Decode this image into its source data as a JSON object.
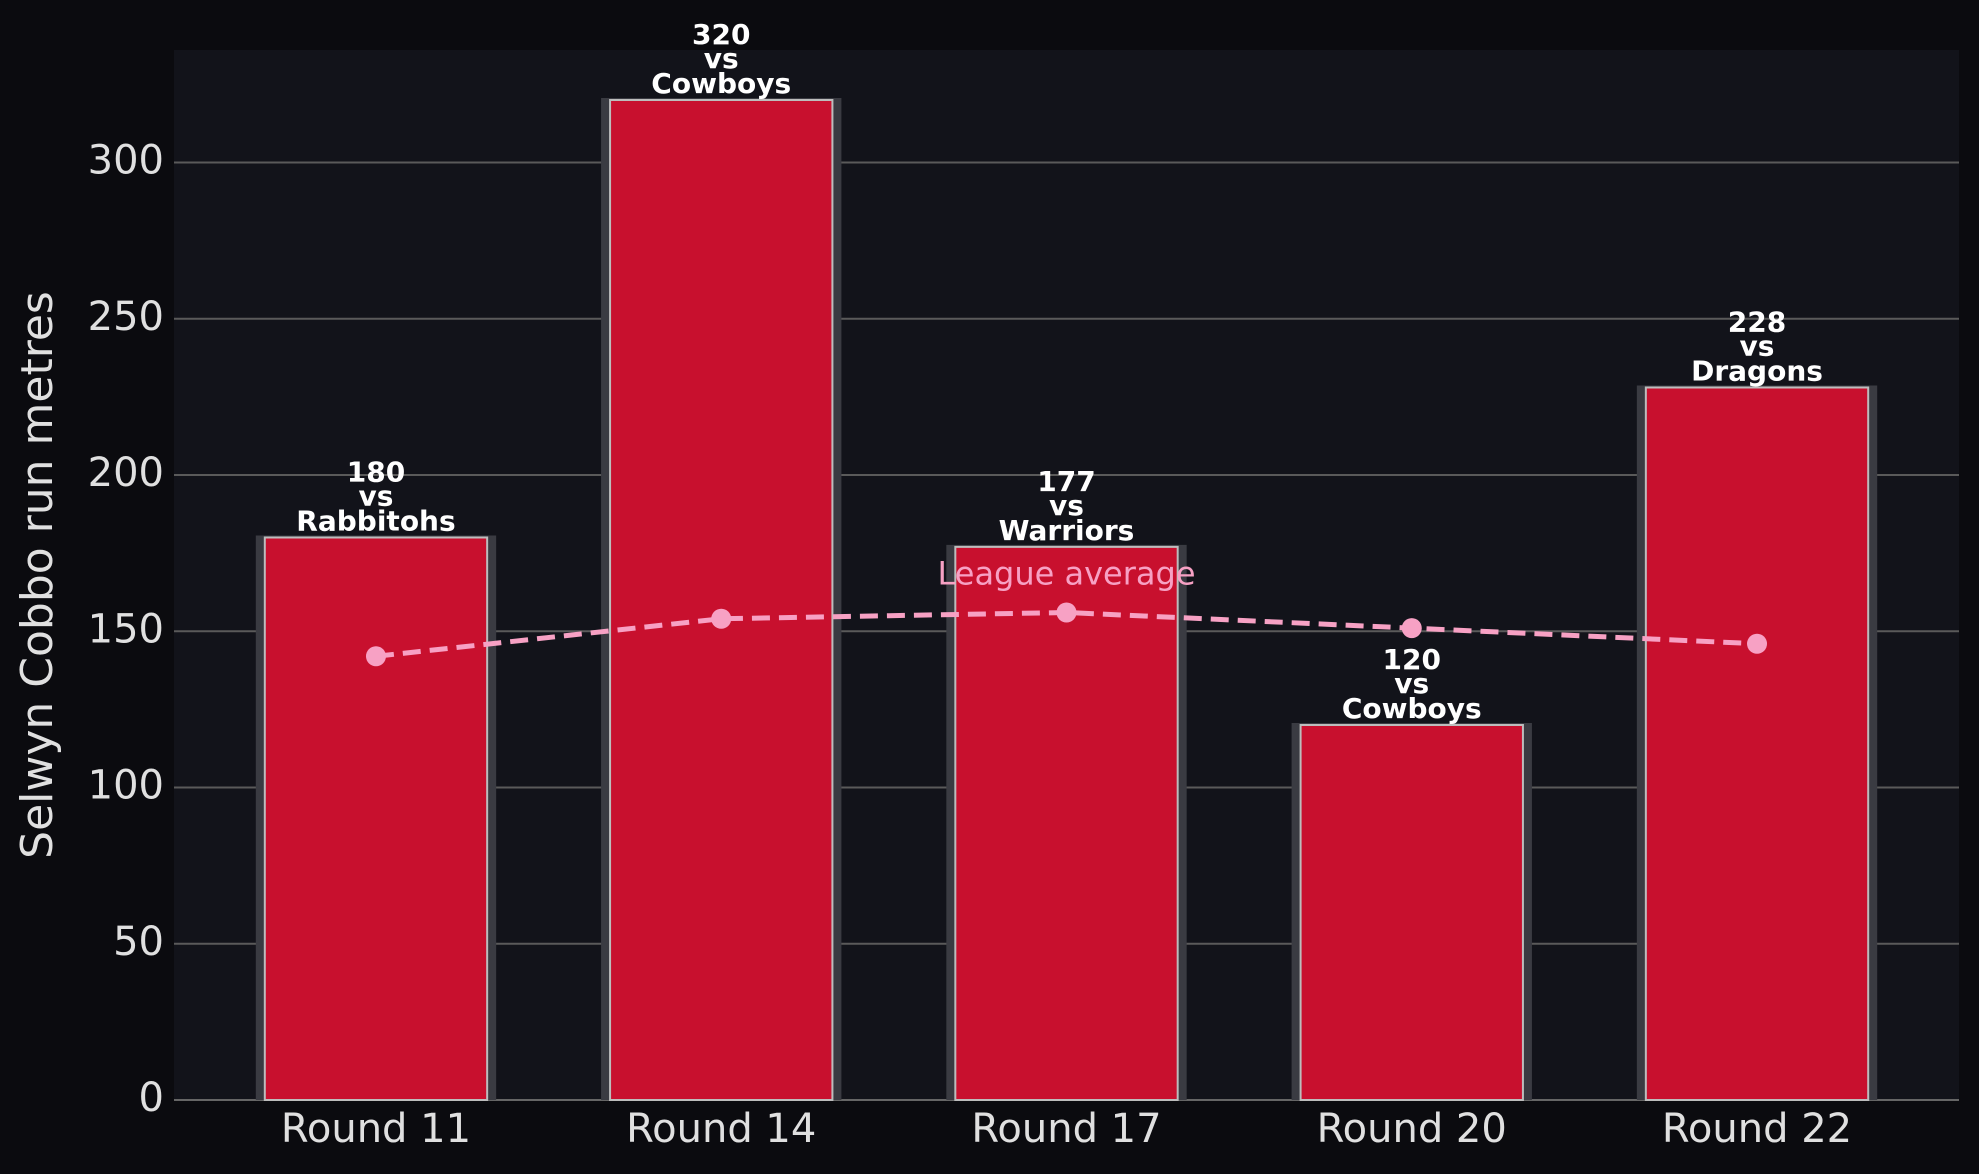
{
  "chart_data": {
    "type": "bar",
    "ylabel": "Selwyn Cobbo run metres",
    "categories": [
      "Round 11",
      "Round 14",
      "Round 17",
      "Round 20",
      "Round 22"
    ],
    "values": [
      180,
      320,
      177,
      120,
      228
    ],
    "color": "#c8102e",
    "connector": "vs",
    "opponents": [
      "Rabbitohs",
      "Cowboys",
      "Warriors",
      "Cowboys",
      "Dragons"
    ],
    "league_average": {
      "label": "League average",
      "values": [
        142,
        154,
        156,
        151,
        146
      ],
      "color": "#f7a1c4"
    },
    "ylim": [
      0,
      336
    ],
    "yticks": [
      0,
      50,
      100,
      150,
      200,
      250,
      300
    ],
    "grid": true
  }
}
